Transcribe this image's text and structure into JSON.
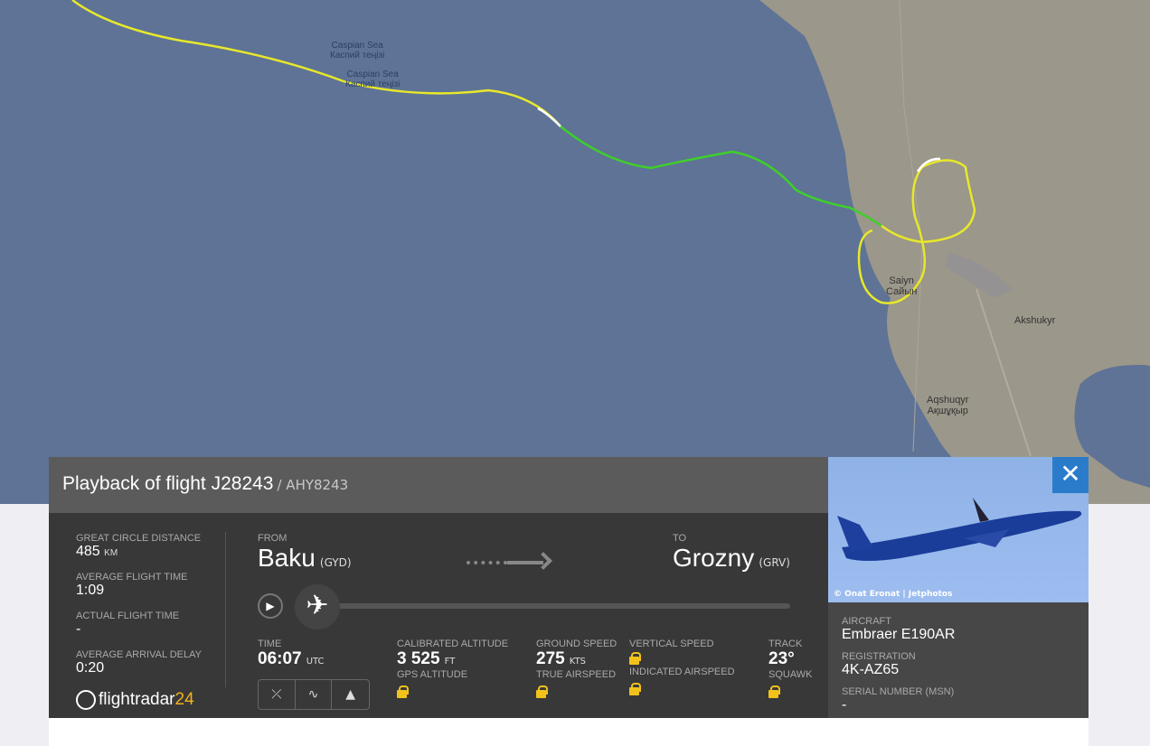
{
  "map": {
    "labels": [
      {
        "en": "Caspian Sea",
        "local": "Каспий теңізі"
      },
      {
        "en": "Caspian Sea",
        "local": "Каспий теңізі"
      }
    ],
    "places": [
      {
        "en": "Saiyn",
        "local": "Сайын"
      },
      {
        "en": "Akshukyr",
        "local": ""
      },
      {
        "en": "Aqshuqyr",
        "local": "Ақшұқыр"
      }
    ],
    "colors": {
      "sea": "#5e7396",
      "land": "#9b978a",
      "track_yellow": "#e8e82a",
      "track_green": "#3fcf2a",
      "track_white": "#ffffff"
    }
  },
  "panel": {
    "title": "Playback of flight J28243",
    "subtitle": "/ AHY8243",
    "stats": [
      {
        "label": "Great circle distance",
        "value": "485",
        "unit": "KM"
      },
      {
        "label": "Average flight time",
        "value": "1:09",
        "unit": ""
      },
      {
        "label": "Actual flight time",
        "value": "-",
        "unit": ""
      },
      {
        "label": "Average arrival delay",
        "value": "0:20",
        "unit": ""
      }
    ],
    "logo": {
      "text": "flightradar",
      "num": "24"
    },
    "from": {
      "label": "FROM",
      "city": "Baku",
      "code": "(GYD)"
    },
    "to": {
      "label": "TO",
      "city": "Grozny",
      "code": "(GRV)"
    },
    "playback_progress": 0,
    "time": {
      "label": "TIME",
      "value": "06:07",
      "unit": "UTC"
    },
    "cal_alt": {
      "label": "Calibrated altitude",
      "value": "3 525",
      "unit": "FT"
    },
    "gps_alt": {
      "label": "GPS altitude"
    },
    "ground_speed": {
      "label": "Ground speed",
      "value": "275",
      "unit": "KTS"
    },
    "true_airspeed": {
      "label": "True airspeed"
    },
    "vertical_speed": {
      "label": "Vertical speed"
    },
    "indicated_airspeed": {
      "label": "Indicated airspeed"
    },
    "track": {
      "label": "Track",
      "value": "23°"
    },
    "squawk": {
      "label": "Squawk"
    },
    "photo_credit": "© Onat Eronat | Jetphotos",
    "aircraft": {
      "label": "Aircraft",
      "value": "Embraer E190AR"
    },
    "registration": {
      "label": "Registration",
      "value": "4K-AZ65"
    },
    "serial": {
      "label": "Serial number (MSN)",
      "value": "-"
    },
    "accent": "#2a7ccb",
    "lock_color": "#f2c21b"
  }
}
